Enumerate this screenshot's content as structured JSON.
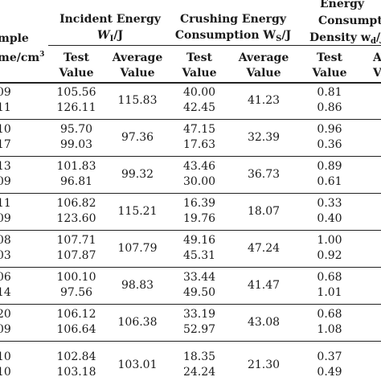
{
  "table": {
    "header": {
      "sample_line1": "mple",
      "sample_line2": "me/cm",
      "sample_sup": "3",
      "incident_line1": "Incident Energy",
      "incident_var": "W",
      "incident_sub": "I",
      "incident_unit": "/J",
      "crushing_line1": "Crushing Energy",
      "crushing_line2": "Consumption W",
      "crushing_sub": "S",
      "crushing_unit": "/J",
      "density_line1": "Energy",
      "density_line2": "Consumpt",
      "density_line3": "Density w",
      "density_sub": "d",
      "density_unit": "/J",
      "test_value": [
        "Test",
        "Value"
      ],
      "average_value": [
        "Average",
        "Value"
      ],
      "partial_average": [
        "A",
        "V"
      ]
    },
    "rows": [
      {
        "sample": [
          "09",
          "11"
        ],
        "wi_test": [
          "105.56",
          "126.11"
        ],
        "wi_avg": "115.83",
        "ws_test": [
          "40.00",
          "42.45"
        ],
        "ws_avg": "41.23",
        "wd_test": [
          "0.81",
          "0.86"
        ]
      },
      {
        "sample": [
          "10",
          "17"
        ],
        "wi_test": [
          "95.70",
          "99.03"
        ],
        "wi_avg": "97.36",
        "ws_test": [
          "47.15",
          "17.63"
        ],
        "ws_avg": "32.39",
        "wd_test": [
          "0.96",
          "0.36"
        ]
      },
      {
        "sample": [
          "13",
          "09"
        ],
        "wi_test": [
          "101.83",
          "96.81"
        ],
        "wi_avg": "99.32",
        "ws_test": [
          "43.46",
          "30.00"
        ],
        "ws_avg": "36.73",
        "wd_test": [
          "0.89",
          "0.61"
        ]
      },
      {
        "sample": [
          "11",
          "09"
        ],
        "wi_test": [
          "106.82",
          "123.60"
        ],
        "wi_avg": "115.21",
        "ws_test": [
          "16.39",
          "19.76"
        ],
        "ws_avg": "18.07",
        "wd_test": [
          "0.33",
          "0.40"
        ]
      },
      {
        "sample": [
          "08",
          "03"
        ],
        "wi_test": [
          "107.71",
          "107.87"
        ],
        "wi_avg": "107.79",
        "ws_test": [
          "49.16",
          "45.31"
        ],
        "ws_avg": "47.24",
        "wd_test": [
          "1.00",
          "0.92"
        ]
      },
      {
        "sample": [
          "06",
          "14"
        ],
        "wi_test": [
          "100.10",
          "97.56"
        ],
        "wi_avg": "98.83",
        "ws_test": [
          "33.44",
          "49.50"
        ],
        "ws_avg": "41.47",
        "wd_test": [
          "0.68",
          "1.01"
        ]
      },
      {
        "sample": [
          "20",
          "09"
        ],
        "wi_test": [
          "106.12",
          "106.64"
        ],
        "wi_avg": "106.38",
        "ws_test": [
          "33.19",
          "52.97"
        ],
        "ws_avg": "43.08",
        "wd_test": [
          "0.68",
          "1.08"
        ]
      },
      {
        "sample": [
          "10",
          "10"
        ],
        "wi_test": [
          "102.84",
          "103.18"
        ],
        "wi_avg": "103.01",
        "ws_test": [
          "18.35",
          "24.24"
        ],
        "ws_avg": "21.30",
        "wd_test": [
          "0.37",
          "0.49"
        ]
      }
    ]
  }
}
